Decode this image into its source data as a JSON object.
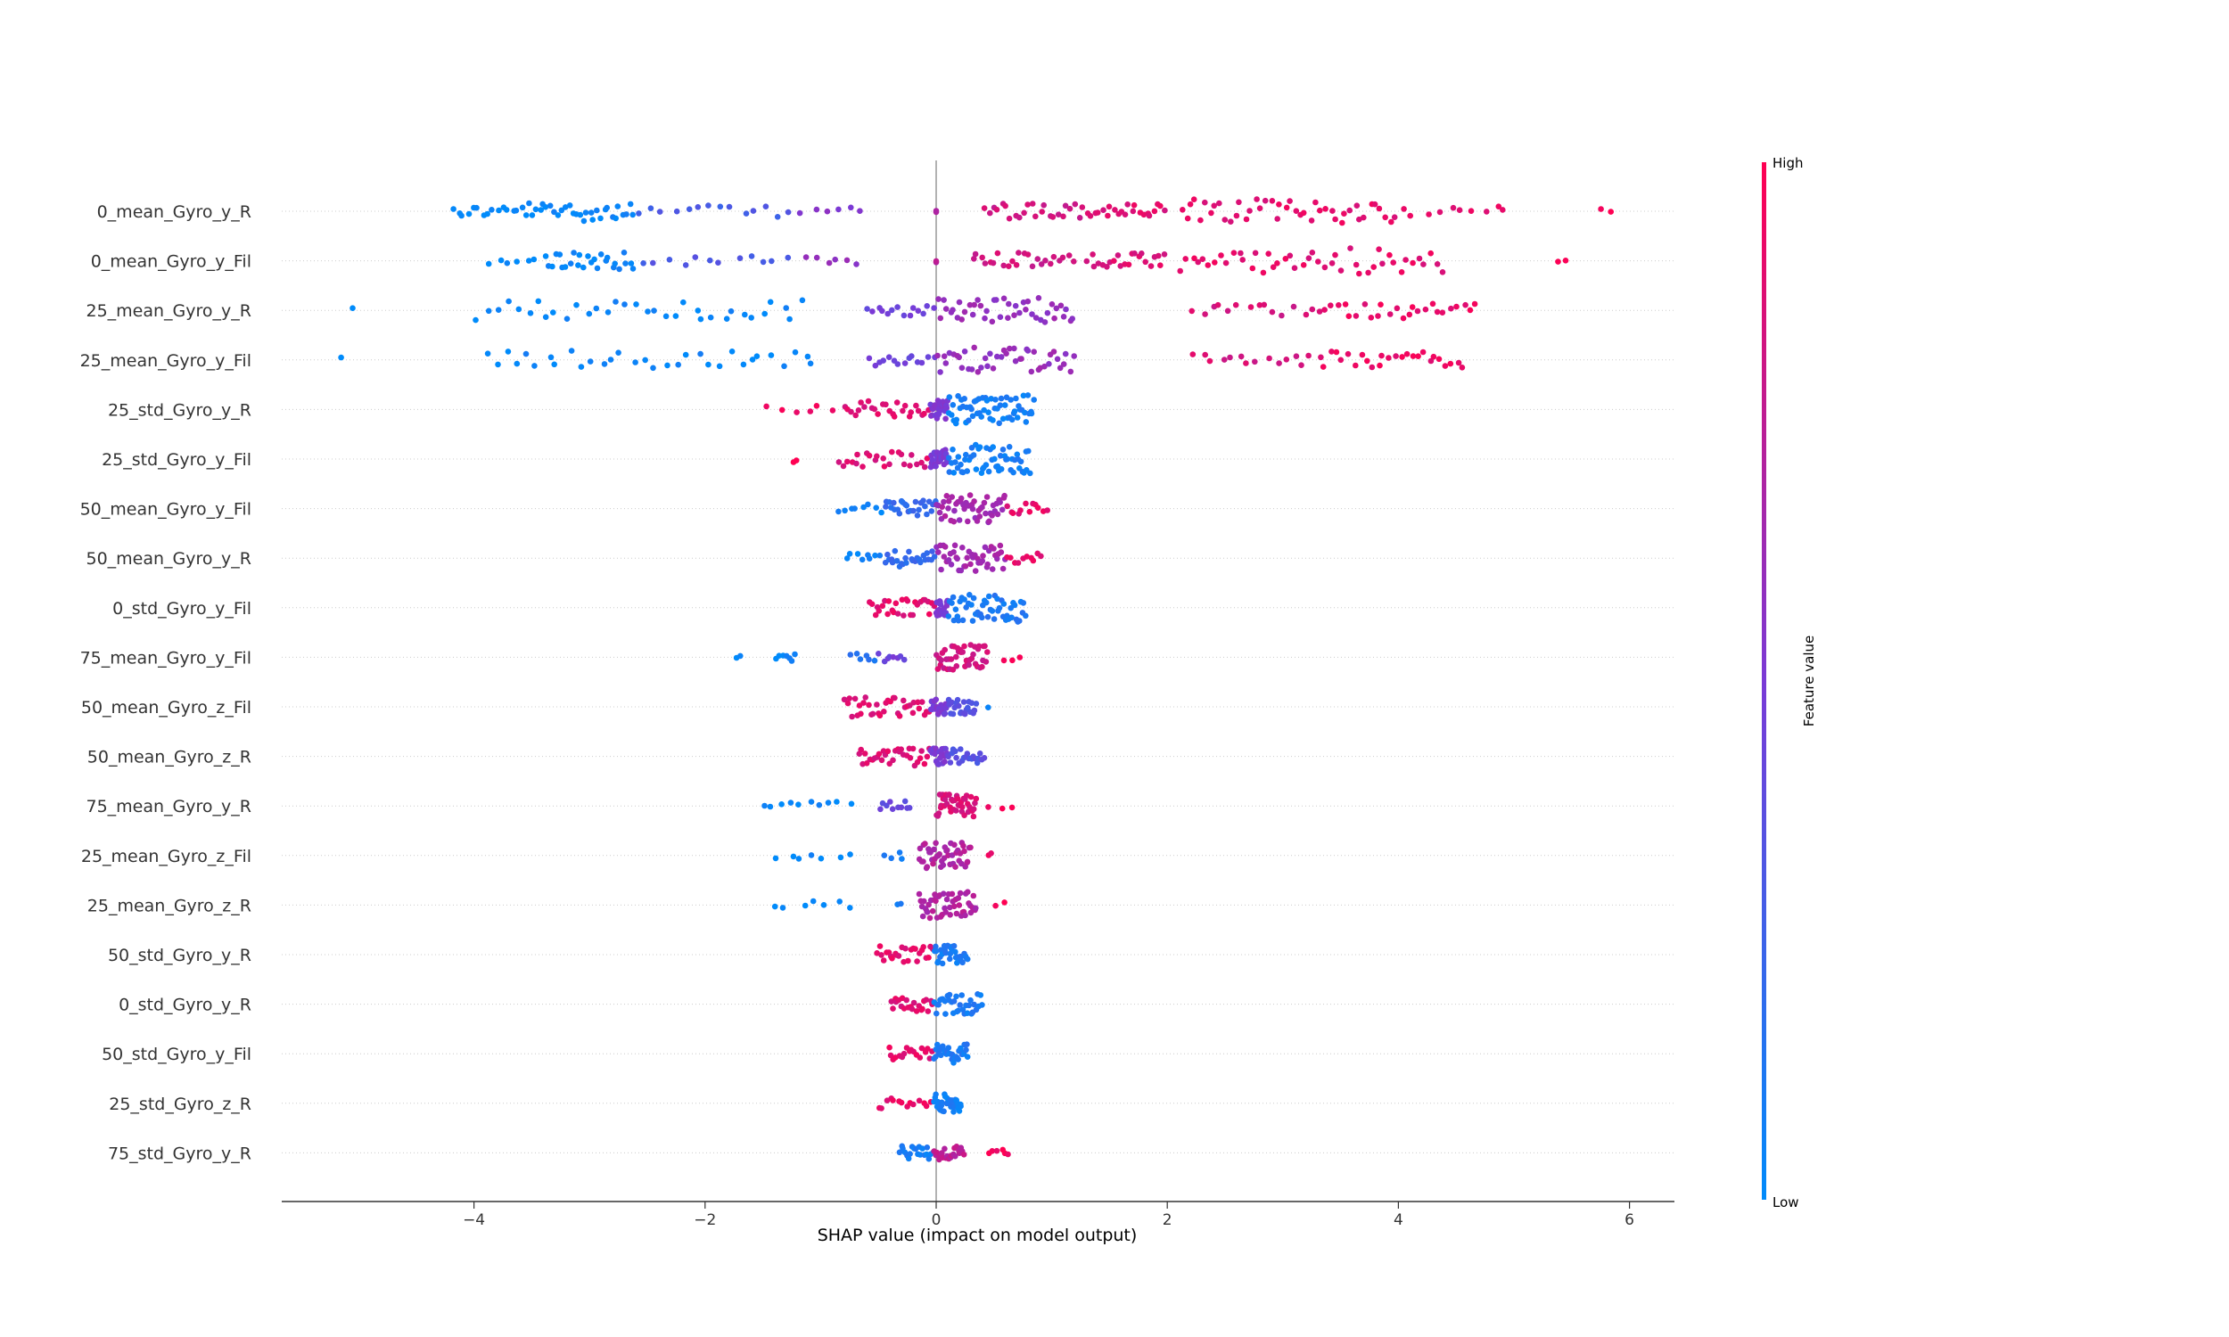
{
  "chart_data": {
    "type": "scatter",
    "title": "",
    "xlabel": "SHAP value (impact on model output)",
    "xlim": [
      -5.6,
      6.4
    ],
    "xticks": [
      {
        "value": -4,
        "label": "−4"
      },
      {
        "value": -2,
        "label": "−2"
      },
      {
        "value": 0,
        "label": "0"
      },
      {
        "value": 2,
        "label": "2"
      },
      {
        "value": 4,
        "label": "4"
      },
      {
        "value": 6,
        "label": "6"
      }
    ],
    "colorbar": {
      "title": "Feature value",
      "high_label": "High",
      "low_label": "Low",
      "high_color": "#ff0052",
      "low_color": "#008bfb"
    },
    "colors": {
      "low": "#008bfb",
      "mid": "#7a3ad6",
      "high": "#ff0052"
    },
    "features": [
      {
        "name": "0_mean_Gyro_y_R",
        "segments": [
          {
            "from": -4.2,
            "to": -3.6,
            "n": 14,
            "val": 0.0
          },
          {
            "from": -3.6,
            "to": -2.6,
            "n": 32,
            "val": 0.03
          },
          {
            "from": -2.6,
            "to": -1.2,
            "n": 14,
            "val": 0.28
          },
          {
            "from": -1.2,
            "to": -0.6,
            "n": 6,
            "val": 0.55
          },
          {
            "from": 0.0,
            "to": 0.0,
            "n": 2,
            "val": 0.7
          },
          {
            "from": 0.4,
            "to": 1.3,
            "n": 24,
            "val": 0.82
          },
          {
            "from": 1.3,
            "to": 2.0,
            "n": 22,
            "val": 0.88
          },
          {
            "from": 2.1,
            "to": 4.0,
            "n": 44,
            "val": 0.9
          },
          {
            "from": 4.0,
            "to": 5.0,
            "n": 10,
            "val": 0.93
          },
          {
            "from": 5.75,
            "to": 5.85,
            "n": 2,
            "val": 0.98
          }
        ]
      },
      {
        "name": "0_mean_Gyro_y_Fil",
        "segments": [
          {
            "from": -3.9,
            "to": -3.4,
            "n": 6,
            "val": 0.0
          },
          {
            "from": -3.4,
            "to": -2.6,
            "n": 26,
            "val": 0.03
          },
          {
            "from": -2.6,
            "to": -1.2,
            "n": 12,
            "val": 0.3
          },
          {
            "from": -1.2,
            "to": -0.6,
            "n": 6,
            "val": 0.58
          },
          {
            "from": 0.0,
            "to": 0.0,
            "n": 2,
            "val": 0.7
          },
          {
            "from": 0.3,
            "to": 1.2,
            "n": 24,
            "val": 0.82
          },
          {
            "from": 1.3,
            "to": 2.0,
            "n": 22,
            "val": 0.88
          },
          {
            "from": 2.1,
            "to": 4.4,
            "n": 46,
            "val": 0.9
          },
          {
            "from": 5.35,
            "to": 5.5,
            "n": 2,
            "val": 0.98
          }
        ]
      },
      {
        "name": "25_mean_Gyro_z_R",
        "segments": [],
        "placeholder": true
      },
      {
        "name": "25_mean_Gyro_y_Fil",
        "segments": []
      }
    ]
  },
  "features_full": [
    {
      "name": "0_mean_Gyro_y_R",
      "segments": [
        {
          "from": -4.2,
          "to": -3.6,
          "n": 14,
          "val": 0.0
        },
        {
          "from": -3.6,
          "to": -2.6,
          "n": 32,
          "val": 0.03
        },
        {
          "from": -2.6,
          "to": -1.2,
          "n": 14,
          "val": 0.28
        },
        {
          "from": -1.2,
          "to": -0.6,
          "n": 6,
          "val": 0.55
        },
        {
          "from": 0.0,
          "to": 0.0,
          "n": 2,
          "val": 0.7
        },
        {
          "from": 0.4,
          "to": 1.3,
          "n": 24,
          "val": 0.82
        },
        {
          "from": 1.3,
          "to": 2.0,
          "n": 22,
          "val": 0.88
        },
        {
          "from": 2.1,
          "to": 4.0,
          "n": 44,
          "val": 0.9
        },
        {
          "from": 4.0,
          "to": 5.0,
          "n": 10,
          "val": 0.93
        },
        {
          "from": 5.75,
          "to": 5.85,
          "n": 2,
          "val": 0.98
        }
      ]
    },
    {
      "name": "0_mean_Gyro_y_Fil",
      "segments": [
        {
          "from": -3.9,
          "to": -3.4,
          "n": 6,
          "val": 0.0
        },
        {
          "from": -3.4,
          "to": -2.6,
          "n": 26,
          "val": 0.03
        },
        {
          "from": -2.6,
          "to": -1.2,
          "n": 12,
          "val": 0.3
        },
        {
          "from": -1.2,
          "to": -0.6,
          "n": 6,
          "val": 0.58
        },
        {
          "from": 0.0,
          "to": 0.0,
          "n": 2,
          "val": 0.7
        },
        {
          "from": 0.3,
          "to": 1.2,
          "n": 24,
          "val": 0.82
        },
        {
          "from": 1.3,
          "to": 2.0,
          "n": 22,
          "val": 0.88
        },
        {
          "from": 2.1,
          "to": 4.4,
          "n": 46,
          "val": 0.9
        },
        {
          "from": 5.35,
          "to": 5.5,
          "n": 2,
          "val": 0.98
        }
      ]
    },
    {
      "name": "25_mean_Gyro_y_R",
      "segments": [
        {
          "from": -5.05,
          "to": -5.05,
          "n": 1,
          "val": 0.0
        },
        {
          "from": -4.0,
          "to": -1.1,
          "n": 34,
          "val": 0.03
        },
        {
          "from": -0.6,
          "to": 0.0,
          "n": 14,
          "val": 0.45
        },
        {
          "from": 0.0,
          "to": 1.2,
          "n": 44,
          "val": 0.6
        },
        {
          "from": 2.2,
          "to": 3.3,
          "n": 14,
          "val": 0.85
        },
        {
          "from": 3.3,
          "to": 4.7,
          "n": 26,
          "val": 0.92
        }
      ]
    },
    {
      "name": "25_mean_Gyro_y_Fil",
      "segments": [
        {
          "from": -5.15,
          "to": -5.15,
          "n": 1,
          "val": 0.0
        },
        {
          "from": -3.95,
          "to": -1.0,
          "n": 32,
          "val": 0.03
        },
        {
          "from": -0.6,
          "to": 0.0,
          "n": 14,
          "val": 0.45
        },
        {
          "from": 0.0,
          "to": 1.2,
          "n": 44,
          "val": 0.6
        },
        {
          "from": 2.2,
          "to": 3.3,
          "n": 14,
          "val": 0.85
        },
        {
          "from": 3.3,
          "to": 4.6,
          "n": 26,
          "val": 0.92
        }
      ]
    },
    {
      "name": "25_std_Gyro_y_R",
      "segments": [
        {
          "from": -1.5,
          "to": -0.85,
          "n": 6,
          "val": 0.97
        },
        {
          "from": -0.8,
          "to": -0.05,
          "n": 26,
          "val": 0.88
        },
        {
          "from": -0.05,
          "to": 0.1,
          "n": 30,
          "val": 0.5
        },
        {
          "from": 0.1,
          "to": 0.85,
          "n": 60,
          "val": 0.08
        }
      ]
    },
    {
      "name": "25_std_Gyro_y_Fil",
      "segments": [
        {
          "from": -1.25,
          "to": -1.2,
          "n": 2,
          "val": 0.97
        },
        {
          "from": -0.85,
          "to": -0.05,
          "n": 24,
          "val": 0.88
        },
        {
          "from": -0.05,
          "to": 0.1,
          "n": 30,
          "val": 0.5
        },
        {
          "from": 0.1,
          "to": 0.82,
          "n": 56,
          "val": 0.08
        }
      ]
    },
    {
      "name": "50_mean_Gyro_y_Fil",
      "segments": [
        {
          "from": -0.88,
          "to": -0.45,
          "n": 8,
          "val": 0.03
        },
        {
          "from": -0.45,
          "to": 0.0,
          "n": 26,
          "val": 0.2
        },
        {
          "from": 0.0,
          "to": 0.6,
          "n": 50,
          "val": 0.65
        },
        {
          "from": 0.6,
          "to": 0.97,
          "n": 12,
          "val": 0.9
        }
      ]
    },
    {
      "name": "50_mean_Gyro_y_R",
      "segments": [
        {
          "from": -0.8,
          "to": -0.45,
          "n": 8,
          "val": 0.03
        },
        {
          "from": -0.45,
          "to": 0.0,
          "n": 26,
          "val": 0.2
        },
        {
          "from": 0.0,
          "to": 0.6,
          "n": 46,
          "val": 0.65
        },
        {
          "from": 0.6,
          "to": 0.93,
          "n": 10,
          "val": 0.9
        }
      ]
    },
    {
      "name": "0_std_Gyro_y_Fil",
      "segments": [
        {
          "from": -0.58,
          "to": 0.0,
          "n": 28,
          "val": 0.9
        },
        {
          "from": 0.0,
          "to": 0.1,
          "n": 24,
          "val": 0.5
        },
        {
          "from": 0.1,
          "to": 0.78,
          "n": 52,
          "val": 0.12
        }
      ]
    },
    {
      "name": "75_mean_Gyro_y_Fil",
      "segments": [
        {
          "from": -1.75,
          "to": -1.65,
          "n": 2,
          "val": 0.0
        },
        {
          "from": -1.4,
          "to": -1.2,
          "n": 7,
          "val": 0.03
        },
        {
          "from": -0.75,
          "to": -0.5,
          "n": 6,
          "val": 0.15
        },
        {
          "from": -0.5,
          "to": -0.25,
          "n": 8,
          "val": 0.45
        },
        {
          "from": 0.0,
          "to": 0.45,
          "n": 44,
          "val": 0.82
        },
        {
          "from": 0.55,
          "to": 0.78,
          "n": 3,
          "val": 0.95
        }
      ]
    },
    {
      "name": "50_mean_Gyro_z_Fil",
      "segments": [
        {
          "from": -0.8,
          "to": -0.05,
          "n": 36,
          "val": 0.88
        },
        {
          "from": -0.05,
          "to": 0.1,
          "n": 24,
          "val": 0.5
        },
        {
          "from": 0.1,
          "to": 0.35,
          "n": 22,
          "val": 0.35
        },
        {
          "from": 0.45,
          "to": 0.45,
          "n": 1,
          "val": 0.1
        }
      ]
    },
    {
      "name": "50_mean_Gyro_z_R",
      "segments": [
        {
          "from": -0.68,
          "to": -0.05,
          "n": 32,
          "val": 0.88
        },
        {
          "from": -0.05,
          "to": 0.1,
          "n": 24,
          "val": 0.5
        },
        {
          "from": 0.1,
          "to": 0.42,
          "n": 22,
          "val": 0.35
        }
      ]
    },
    {
      "name": "75_mean_Gyro_y_R",
      "segments": [
        {
          "from": -1.55,
          "to": -0.7,
          "n": 10,
          "val": 0.02
        },
        {
          "from": -0.5,
          "to": -0.2,
          "n": 10,
          "val": 0.4
        },
        {
          "from": 0.0,
          "to": 0.35,
          "n": 42,
          "val": 0.85
        },
        {
          "from": 0.45,
          "to": 0.68,
          "n": 3,
          "val": 0.95
        }
      ]
    },
    {
      "name": "25_mean_Gyro_z_Fil",
      "segments": [
        {
          "from": -1.4,
          "to": -0.7,
          "n": 7,
          "val": 0.02
        },
        {
          "from": -0.45,
          "to": -0.25,
          "n": 4,
          "val": 0.1
        },
        {
          "from": -0.15,
          "to": 0.3,
          "n": 46,
          "val": 0.7
        },
        {
          "from": 0.45,
          "to": 0.5,
          "n": 2,
          "val": 0.95
        }
      ]
    },
    {
      "name": "25_mean_Gyro_z_R",
      "segments": [
        {
          "from": -1.45,
          "to": -0.65,
          "n": 7,
          "val": 0.02
        },
        {
          "from": -0.38,
          "to": -0.25,
          "n": 2,
          "val": 0.1
        },
        {
          "from": -0.15,
          "to": 0.35,
          "n": 48,
          "val": 0.7
        },
        {
          "from": 0.5,
          "to": 0.67,
          "n": 2,
          "val": 0.95
        }
      ]
    },
    {
      "name": "50_std_Gyro_y_R",
      "segments": [
        {
          "from": -0.52,
          "to": -0.02,
          "n": 26,
          "val": 0.9
        },
        {
          "from": -0.02,
          "to": 0.28,
          "n": 32,
          "val": 0.1
        }
      ]
    },
    {
      "name": "0_std_Gyro_y_R",
      "segments": [
        {
          "from": -0.4,
          "to": -0.02,
          "n": 22,
          "val": 0.88
        },
        {
          "from": -0.02,
          "to": 0.4,
          "n": 34,
          "val": 0.1
        }
      ]
    },
    {
      "name": "50_std_Gyro_y_Fil",
      "segments": [
        {
          "from": -0.42,
          "to": -0.02,
          "n": 18,
          "val": 0.9
        },
        {
          "from": -0.02,
          "to": 0.28,
          "n": 32,
          "val": 0.1
        }
      ]
    },
    {
      "name": "25_std_Gyro_z_R",
      "segments": [
        {
          "from": -0.52,
          "to": -0.02,
          "n": 14,
          "val": 0.92
        },
        {
          "from": -0.02,
          "to": 0.22,
          "n": 32,
          "val": 0.08
        }
      ]
    },
    {
      "name": "75_std_Gyro_y_R",
      "segments": [
        {
          "from": -0.32,
          "to": -0.02,
          "n": 20,
          "val": 0.08
        },
        {
          "from": -0.02,
          "to": 0.25,
          "n": 22,
          "val": 0.75
        },
        {
          "from": 0.45,
          "to": 0.65,
          "n": 6,
          "val": 0.95
        }
      ]
    }
  ]
}
